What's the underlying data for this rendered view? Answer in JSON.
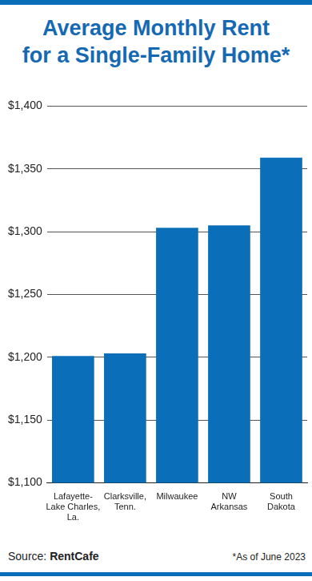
{
  "chart_data": {
    "type": "bar",
    "title": "Average Monthly Rent\nfor a Single-Family Home*",
    "categories": [
      "Lafayette-\nLake Charles,\nLa.",
      "Clarksville,\nTenn.",
      "Milwaukee",
      "NW\nArkansas",
      "South\nDakota"
    ],
    "values": [
      1201,
      1203,
      1303,
      1305,
      1359
    ],
    "color": "#0a6eb8",
    "ylim": [
      1100,
      1400
    ],
    "yticks": [
      {
        "value": 1100,
        "label": "$1,100"
      },
      {
        "value": 1150,
        "label": "$1,150"
      },
      {
        "value": 1200,
        "label": "$1,200"
      },
      {
        "value": 1250,
        "label": "$1,250"
      },
      {
        "value": 1300,
        "label": "$1,300"
      },
      {
        "value": 1350,
        "label": "$1,350"
      },
      {
        "value": 1400,
        "label": "$1,400"
      }
    ],
    "grid": true,
    "source": "Source: RentCafe",
    "note": "*As of June 2023"
  }
}
